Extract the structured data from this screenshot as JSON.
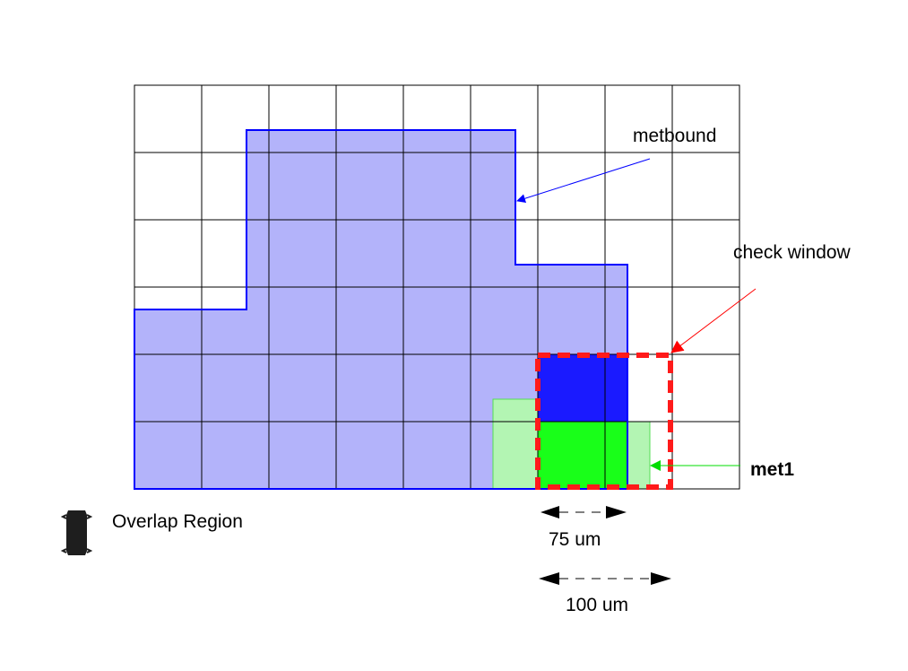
{
  "labels": {
    "metbound": "metbound",
    "check_window": "check window",
    "met1": "met1",
    "overlap_region": "Overlap Region",
    "dim_75": "75 um",
    "dim_100": "100 um"
  },
  "colors": {
    "grid_line": "#000000",
    "metbound_fill": "#b3b3fa",
    "metbound_outline": "#0000ff",
    "overlap_blue": "#1a1aff",
    "met1_green": "#19ff19",
    "met1_light": "#b3f5b3",
    "check_window_border": "#ff1a1a",
    "legend_swatch": "#1e1e1e"
  },
  "icons": {
    "overlap_legend": "overlap-legend-swatch"
  }
}
